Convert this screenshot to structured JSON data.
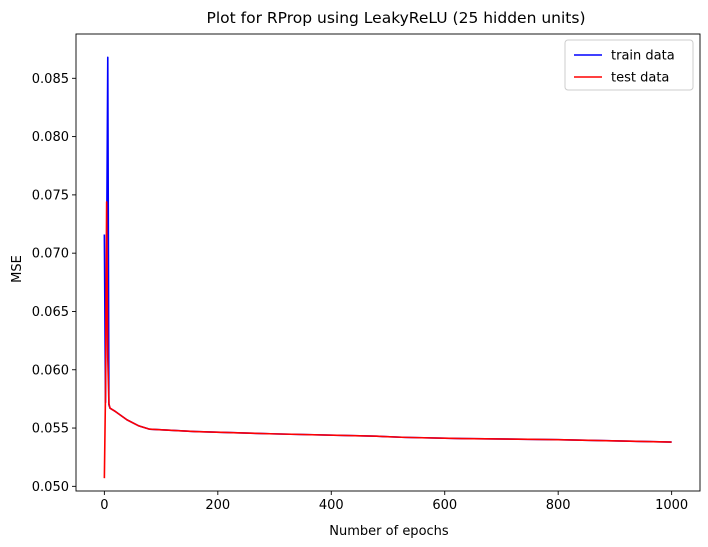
{
  "chart_data": {
    "type": "line",
    "title": "Plot for RProp using LeakyReLU (25 hidden units)",
    "xlabel": "Number of epochs",
    "ylabel": "MSE",
    "xlim": [
      -50,
      1050
    ],
    "ylim": [
      0.0496,
      0.0888
    ],
    "xticks": [
      0,
      200,
      400,
      600,
      800,
      1000
    ],
    "xtick_labels": [
      "0",
      "200",
      "400",
      "600",
      "800",
      "1000"
    ],
    "yticks": [
      0.05,
      0.055,
      0.06,
      0.065,
      0.07,
      0.075,
      0.08,
      0.085
    ],
    "ytick_labels": [
      "0.050",
      "0.055",
      "0.060",
      "0.065",
      "0.070",
      "0.075",
      "0.080",
      "0.085"
    ],
    "grid": false,
    "legend_position": "top-right",
    "series": [
      {
        "name": "train data",
        "color": "#0000ff",
        "x": [
          0,
          2,
          4,
          6,
          8,
          10,
          20,
          40,
          60,
          80,
          160,
          300,
          480,
          530,
          630,
          800,
          1000
        ],
        "y": [
          0.0716,
          0.0572,
          0.07,
          0.0868,
          0.057,
          0.0567,
          0.0564,
          0.0557,
          0.0552,
          0.0549,
          0.0547,
          0.0545,
          0.0543,
          0.0542,
          0.0541,
          0.054,
          0.0538
        ]
      },
      {
        "name": "test data",
        "color": "#ff0000",
        "x": [
          0,
          2,
          4,
          6,
          8,
          10,
          20,
          40,
          60,
          80,
          160,
          300,
          480,
          530,
          630,
          800,
          1000
        ],
        "y": [
          0.0507,
          0.058,
          0.0744,
          0.061,
          0.0571,
          0.0567,
          0.0564,
          0.0557,
          0.0552,
          0.0549,
          0.0547,
          0.0545,
          0.0543,
          0.0542,
          0.0541,
          0.054,
          0.0538
        ]
      }
    ]
  }
}
